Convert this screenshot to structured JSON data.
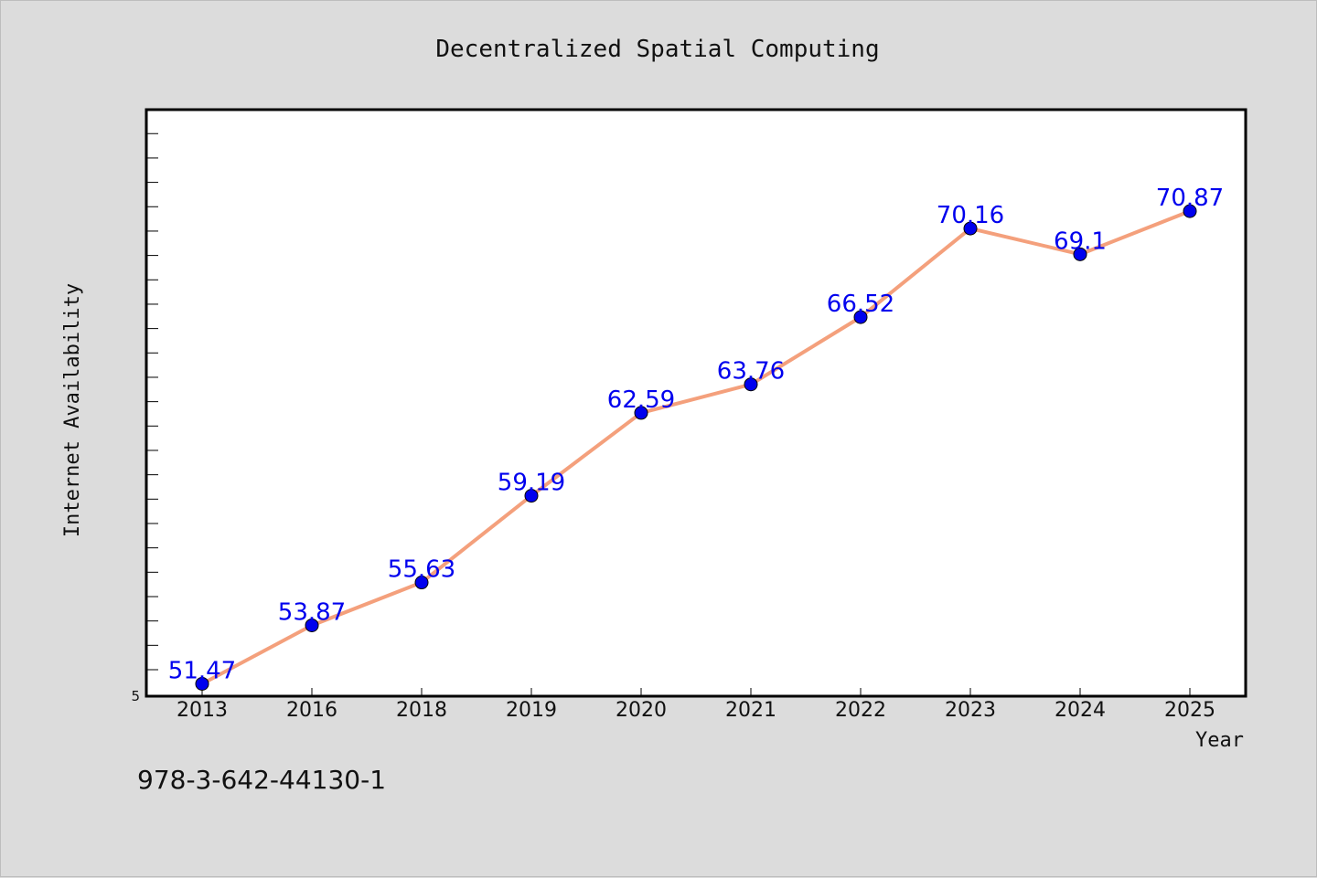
{
  "chart_data": {
    "type": "line",
    "title": "Decentralized Spatial Computing",
    "xlabel": "Year",
    "ylabel": "Internet Availability",
    "categories": [
      "2013",
      "2016",
      "2018",
      "2019",
      "2020",
      "2021",
      "2022",
      "2023",
      "2024",
      "2025"
    ],
    "series": [
      {
        "values": [
          51.47,
          53.87,
          55.63,
          59.19,
          62.59,
          63.76,
          66.52,
          70.16,
          69.1,
          70.87
        ],
        "labels": [
          "51.47",
          "53.87",
          "55.63",
          "59.19",
          "62.59",
          "63.76",
          "66.52",
          "70.16",
          "69.1",
          "70.87"
        ],
        "line_color": "#f4a07c",
        "marker_color": "#0000ee",
        "label_color": "#0000ee"
      }
    ],
    "ylim": [
      51,
      75
    ],
    "y_tick_labels": [
      "5"
    ],
    "grid": false,
    "legend": "none"
  },
  "footer": {
    "isbn": "978-3-642-44130-1"
  },
  "colors": {
    "background": "#dcdcdc",
    "plot_background": "#ffffff",
    "frame": "#000000"
  }
}
